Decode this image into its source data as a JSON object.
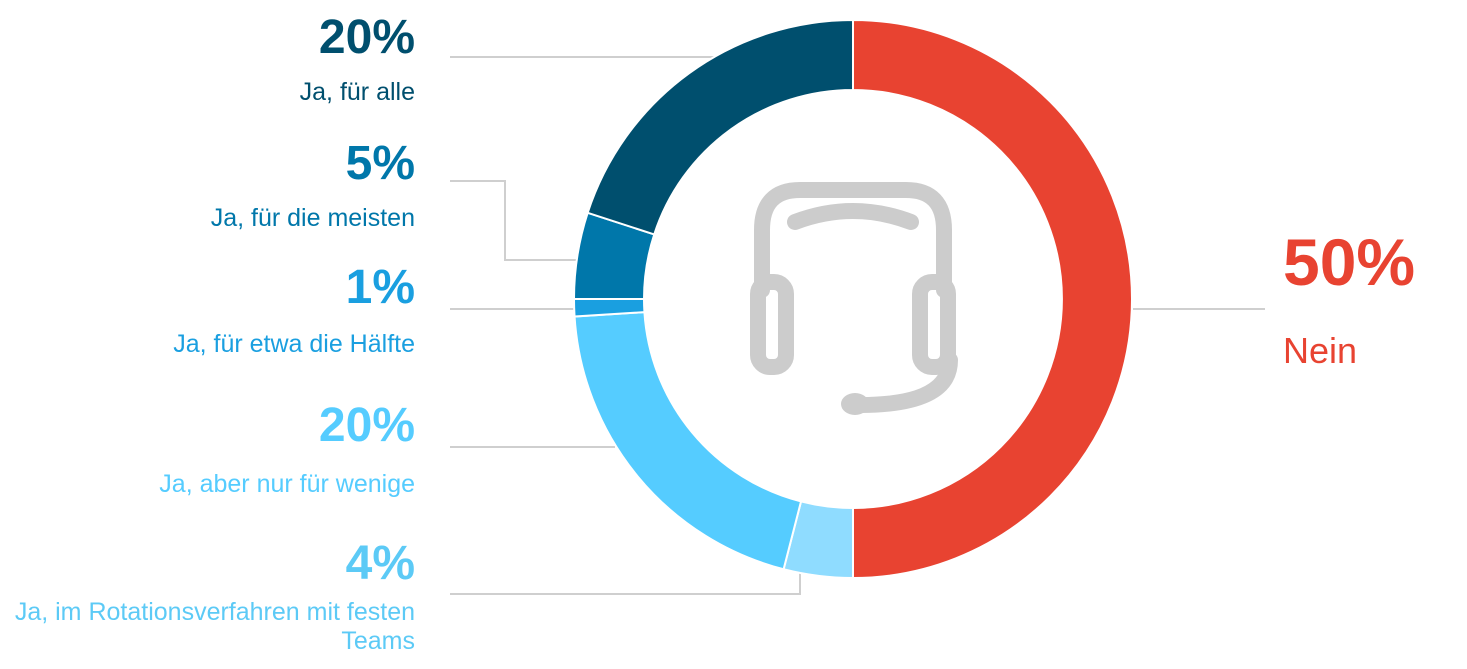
{
  "chart_data": {
    "type": "donut",
    "categories": [
      "Nein",
      "Ja, im Rotationsverfahren mit festen Teams",
      "Ja, aber nur für wenige",
      "Ja, für etwa die Hälfte",
      "Ja, für die meisten",
      "Ja, für alle"
    ],
    "values": [
      50,
      4,
      20,
      1,
      5,
      20
    ],
    "value_labels": [
      "50%",
      "4%",
      "20%",
      "1%",
      "5%",
      "20%"
    ],
    "colors": [
      "#e84331",
      "#8fdcff",
      "#55ccff",
      "#1a9fe0",
      "#0077aa",
      "#004f6e"
    ]
  }
}
